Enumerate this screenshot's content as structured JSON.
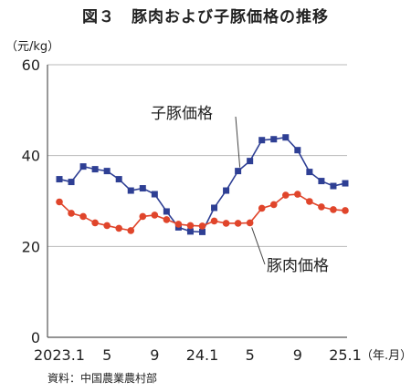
{
  "figure_title": "図３　豚肉および子豚価格の推移",
  "unit_label": "（元/kg）",
  "source_note": "資料：中国農業農村部",
  "colors": {
    "piglet": "#2e3f94",
    "pork": "#e0452b",
    "grid": "#b8b8b8",
    "axis": "#555555"
  },
  "chart_data": {
    "type": "line",
    "title": "図３　豚肉および子豚価格の推移",
    "ylabel": "（元/kg）",
    "xlabel": "（年.月）",
    "ylim": [
      0,
      60
    ],
    "yticks": [
      0,
      20,
      40,
      60
    ],
    "grid": true,
    "legend": "inline labels",
    "x": [
      "2023.1",
      "2023.2",
      "2023.3",
      "2023.4",
      "2023.5",
      "2023.6",
      "2023.7",
      "2023.8",
      "2023.9",
      "2023.10",
      "2023.11",
      "2023.12",
      "2024.1",
      "2024.2",
      "2024.3",
      "2024.4",
      "2024.5",
      "2024.6",
      "2024.7",
      "2024.8",
      "2024.9",
      "2024.10",
      "2024.11",
      "2024.12",
      "2025.1"
    ],
    "xtick_labels": [
      {
        "index": 0,
        "label": "2023.1"
      },
      {
        "index": 4,
        "label": "5"
      },
      {
        "index": 8,
        "label": "9"
      },
      {
        "index": 12,
        "label": "24.1"
      },
      {
        "index": 16,
        "label": "5"
      },
      {
        "index": 20,
        "label": "9"
      },
      {
        "index": 24,
        "label": "25.1"
      }
    ],
    "series": [
      {
        "name": "子豚価格",
        "marker": "square",
        "values": [
          34.8,
          34.2,
          37.6,
          37.0,
          36.6,
          34.8,
          32.3,
          32.8,
          31.5,
          27.7,
          24.2,
          23.3,
          23.2,
          28.5,
          32.3,
          36.6,
          38.8,
          43.4,
          43.6,
          44.0,
          41.2,
          36.4,
          34.4,
          33.3,
          33.9
        ]
      },
      {
        "name": "豚肉価格",
        "marker": "circle",
        "values": [
          29.8,
          27.3,
          26.6,
          25.2,
          24.6,
          24.0,
          23.5,
          26.6,
          26.9,
          25.9,
          24.9,
          24.6,
          24.5,
          25.6,
          25.1,
          25.1,
          25.2,
          28.4,
          29.2,
          31.3,
          31.5,
          29.9,
          28.7,
          28.1,
          27.9
        ]
      }
    ]
  }
}
